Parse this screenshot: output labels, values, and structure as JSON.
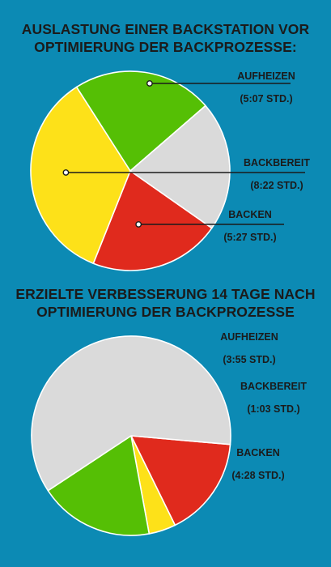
{
  "charts": [
    {
      "title_lines": [
        "AUSLASTUNG EINER BACKSTATION VOR",
        "OPTIMIERUNG DER BACKPROZESSE:"
      ],
      "labels": [
        {
          "name": "AUFHEIZEN",
          "value": "(5:07 STD.)"
        },
        {
          "name": "BACKBEREIT",
          "value": "(8:22 STD.)"
        },
        {
          "name": "BACKEN",
          "value": "(5:27 STD.)"
        }
      ]
    },
    {
      "title_lines": [
        "ERZIELTE VERBESSERUNG 14 TAGE NACH",
        "OPTIMIERUNG DER BACKPROZESSE"
      ],
      "labels": [
        {
          "name": "AUFHEIZEN",
          "value": "(3:55 STD.)"
        },
        {
          "name": "BACKBEREIT",
          "value": "(1:03 STD.)"
        },
        {
          "name": "BACKEN",
          "value": "(4:28 STD.)"
        }
      ]
    }
  ],
  "chart_data": [
    {
      "type": "pie",
      "title": "AUSLASTUNG EINER BACKSTATION VOR OPTIMIERUNG DER BACKPROZESSE:",
      "unit": "hours",
      "slices": [
        {
          "category": "AUFHEIZEN",
          "value": 5.12,
          "label": "(5:07 STD.)",
          "color": "#e02a1d"
        },
        {
          "category": "BACKBEREIT",
          "value": 8.37,
          "label": "(8:22 STD.)",
          "color": "#fde119"
        },
        {
          "category": "BACKEN",
          "value": 5.45,
          "label": "(5:27 STD.)",
          "color": "#55bf05"
        },
        {
          "category": "",
          "value": 5.06,
          "label": "",
          "color": "#dadada"
        }
      ]
    },
    {
      "type": "pie",
      "title": "ERZIELTE VERBESSERUNG 14 TAGE NACH OPTIMIERUNG DER BACKPROZESSE",
      "unit": "hours",
      "slices": [
        {
          "category": "AUFHEIZEN",
          "value": 3.92,
          "label": "(3:55 STD.)",
          "color": "#e02a1d"
        },
        {
          "category": "BACKBEREIT",
          "value": 1.05,
          "label": "(1:03 STD.)",
          "color": "#fde119"
        },
        {
          "category": "BACKEN",
          "value": 4.47,
          "label": "(4:28 STD.)",
          "color": "#55bf05"
        },
        {
          "category": "",
          "value": 14.56,
          "label": "",
          "color": "#dadada"
        }
      ]
    }
  ]
}
